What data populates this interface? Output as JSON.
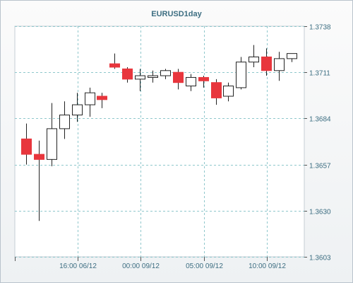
{
  "chart_data": {
    "type": "candlestick",
    "title": "EURUSD1day",
    "y_ticks": [
      "1.3603",
      "1.3630",
      "1.3657",
      "1.3684",
      "1.3711",
      "1.3738"
    ],
    "x_ticks": [
      "16:00 06/12",
      "00:00 09/12",
      "05:00 09/12",
      "10:00 09/12"
    ],
    "ylim": [
      1.3603,
      1.3738
    ],
    "grid": true,
    "colors": {
      "bullish_body": "#ffffff",
      "bearish_body": "#e8363d",
      "wick": "#222222",
      "grid": "#8fc7cc",
      "axis_text": "#3d6e82",
      "title": "#3d6e82"
    },
    "candles": [
      {
        "open": 1.3672,
        "high": 1.3681,
        "low": 1.3657,
        "close": 1.3663
      },
      {
        "open": 1.3663,
        "high": 1.3671,
        "low": 1.3624,
        "close": 1.366
      },
      {
        "open": 1.366,
        "high": 1.3693,
        "low": 1.3656,
        "close": 1.3678
      },
      {
        "open": 1.3678,
        "high": 1.3694,
        "low": 1.3672,
        "close": 1.3686
      },
      {
        "open": 1.3686,
        "high": 1.3699,
        "low": 1.3682,
        "close": 1.3692
      },
      {
        "open": 1.3692,
        "high": 1.3702,
        "low": 1.3685,
        "close": 1.3699
      },
      {
        "open": 1.3697,
        "high": 1.3699,
        "low": 1.369,
        "close": 1.3695
      },
      {
        "open": 1.3716,
        "high": 1.3722,
        "low": 1.3713,
        "close": 1.3714
      },
      {
        "open": 1.3713,
        "high": 1.3714,
        "low": 1.3705,
        "close": 1.3707
      },
      {
        "open": 1.3707,
        "high": 1.3713,
        "low": 1.37,
        "close": 1.3709
      },
      {
        "open": 1.3708,
        "high": 1.3712,
        "low": 1.3705,
        "close": 1.3709
      },
      {
        "open": 1.3709,
        "high": 1.3713,
        "low": 1.3707,
        "close": 1.3712
      },
      {
        "open": 1.3711,
        "high": 1.3713,
        "low": 1.3701,
        "close": 1.3705
      },
      {
        "open": 1.3703,
        "high": 1.371,
        "low": 1.37,
        "close": 1.3708
      },
      {
        "open": 1.3708,
        "high": 1.3709,
        "low": 1.3702,
        "close": 1.3706
      },
      {
        "open": 1.3705,
        "high": 1.3707,
        "low": 1.3692,
        "close": 1.3696
      },
      {
        "open": 1.3697,
        "high": 1.3705,
        "low": 1.3694,
        "close": 1.3703
      },
      {
        "open": 1.3702,
        "high": 1.372,
        "low": 1.3701,
        "close": 1.3717
      },
      {
        "open": 1.3717,
        "high": 1.3727,
        "low": 1.3714,
        "close": 1.372
      },
      {
        "open": 1.372,
        "high": 1.3725,
        "low": 1.3709,
        "close": 1.3712
      },
      {
        "open": 1.3712,
        "high": 1.3723,
        "low": 1.3706,
        "close": 1.3719
      },
      {
        "open": 1.3719,
        "high": 1.3722,
        "low": 1.3717,
        "close": 1.3722
      }
    ]
  }
}
